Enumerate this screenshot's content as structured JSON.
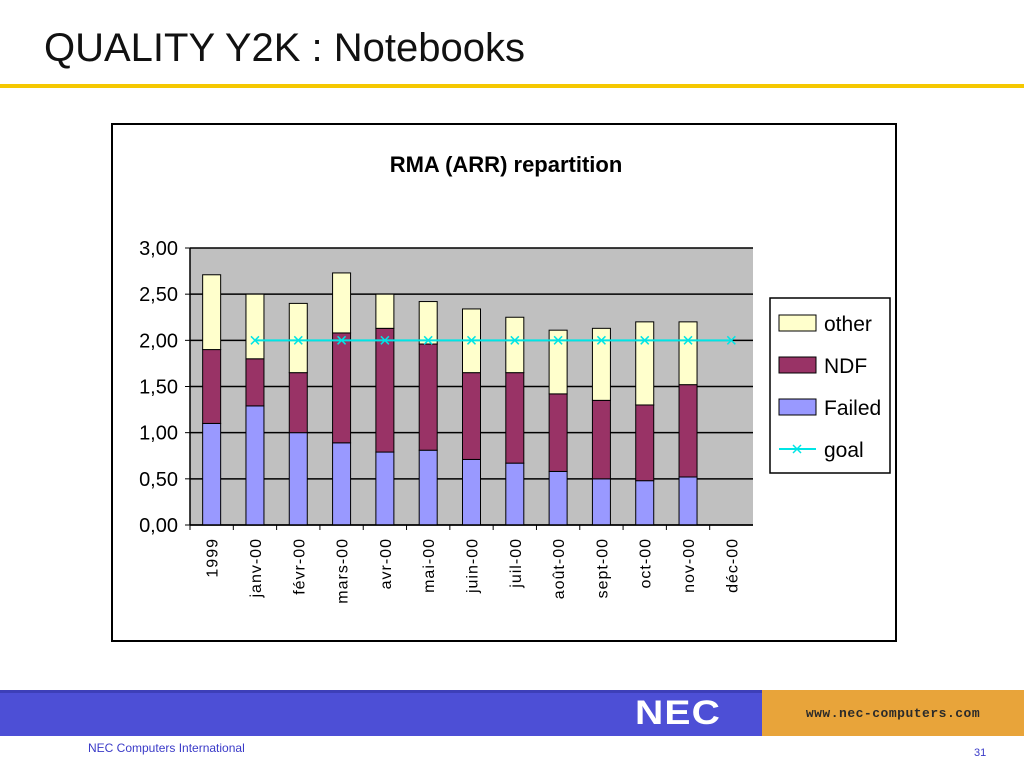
{
  "slide": {
    "title": "QUALITY Y2K : Notebooks",
    "footer_company": "NEC Computers International",
    "page_number": "31",
    "logo_text": "NEC",
    "url": "www.nec-computers.com"
  },
  "colors": {
    "accent_rule": "#f5c800",
    "footer_band": "#4d4fd6",
    "url_panel": "#e8a43a",
    "plot_background": "#c0c0c0",
    "failed": "#9999ff",
    "ndf": "#993366",
    "other": "#ffffcc",
    "goal": "#00e5e5"
  },
  "chart_data": {
    "type": "bar",
    "stacked": true,
    "title": "RMA (ARR)  repartition",
    "categories": [
      "1999",
      "janv-00",
      "févr-00",
      "mars-00",
      "avr-00",
      "mai-00",
      "juin-00",
      "juil-00",
      "août-00",
      "sept-00",
      "oct-00",
      "nov-00",
      "déc-00"
    ],
    "ylim": [
      0,
      3.0
    ],
    "yticks": [
      "0,00",
      "0,50",
      "1,00",
      "1,50",
      "2,00",
      "2,50",
      "3,00"
    ],
    "grid": true,
    "legend_position": "right",
    "series": [
      {
        "name": "Failed",
        "color": "#9999ff",
        "values": [
          1.1,
          1.29,
          1.0,
          0.89,
          0.79,
          0.81,
          0.71,
          0.67,
          0.58,
          0.5,
          0.48,
          0.52,
          0
        ]
      },
      {
        "name": "NDF",
        "color": "#993366",
        "values": [
          0.8,
          0.51,
          0.65,
          1.19,
          1.34,
          1.15,
          0.94,
          0.98,
          0.84,
          0.85,
          0.82,
          1.0,
          0
        ]
      },
      {
        "name": "other",
        "color": "#ffffcc",
        "values": [
          0.81,
          0.7,
          0.75,
          0.65,
          0.37,
          0.46,
          0.69,
          0.6,
          0.69,
          0.78,
          0.9,
          0.68,
          0
        ]
      },
      {
        "name": "goal",
        "type": "line",
        "color": "#00e5e5",
        "values": [
          null,
          2.0,
          2.0,
          2.0,
          2.0,
          2.0,
          2.0,
          2.0,
          2.0,
          2.0,
          2.0,
          2.0,
          2.0
        ]
      }
    ],
    "legend_order": [
      "other",
      "NDF",
      "Failed",
      "goal"
    ]
  }
}
